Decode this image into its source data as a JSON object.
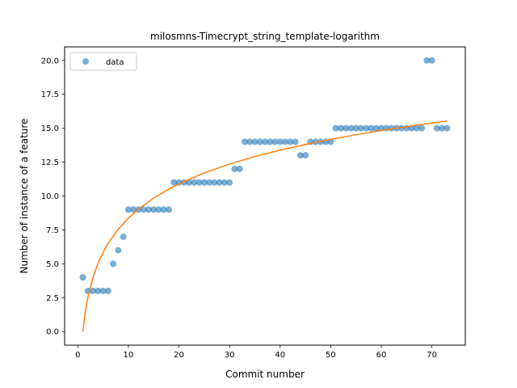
{
  "chart_data": {
    "type": "scatter",
    "title": "milosmns-Timecrypt_string_template-logarithm",
    "xlabel": "Commit number",
    "ylabel": "Number of instance of a feature",
    "xlim": [
      -2.6,
      76.6
    ],
    "ylim": [
      -1.0,
      21.0
    ],
    "xticks": [
      0,
      10,
      20,
      30,
      40,
      50,
      60,
      70
    ],
    "xtick_labels": [
      "0",
      "10",
      "20",
      "30",
      "40",
      "50",
      "60",
      "70"
    ],
    "yticks": [
      0,
      2.5,
      5,
      7.5,
      10,
      12.5,
      15,
      17.5,
      20
    ],
    "ytick_labels": [
      "0.0",
      "2.5",
      "5.0",
      "7.5",
      "10.0",
      "12.5",
      "15.0",
      "17.5",
      "20.0"
    ],
    "grid": false,
    "legend_position": "top-left",
    "series": [
      {
        "name": "data",
        "kind": "scatter",
        "color": "#1f77b4",
        "x": [
          1,
          2,
          3,
          4,
          5,
          6,
          7,
          8,
          9,
          10,
          11,
          12,
          13,
          14,
          15,
          16,
          17,
          18,
          19,
          20,
          21,
          22,
          23,
          24,
          25,
          26,
          27,
          28,
          29,
          30,
          31,
          32,
          33,
          34,
          35,
          36,
          37,
          38,
          39,
          40,
          41,
          42,
          43,
          44,
          45,
          46,
          47,
          48,
          49,
          50,
          51,
          52,
          53,
          54,
          55,
          56,
          57,
          58,
          59,
          60,
          61,
          62,
          63,
          64,
          65,
          66,
          67,
          68,
          69,
          70,
          71,
          72,
          73
        ],
        "y": [
          4,
          3,
          3,
          3,
          3,
          3,
          5,
          6,
          7,
          9,
          9,
          9,
          9,
          9,
          9,
          9,
          9,
          9,
          11,
          11,
          11,
          11,
          11,
          11,
          11,
          11,
          11,
          11,
          11,
          11,
          12,
          12,
          14,
          14,
          14,
          14,
          14,
          14,
          14,
          14,
          14,
          14,
          14,
          13,
          13,
          14,
          14,
          14,
          14,
          14,
          15,
          15,
          15,
          15,
          15,
          15,
          15,
          15,
          15,
          15,
          15,
          15,
          15,
          15,
          15,
          15,
          15,
          15,
          20,
          20,
          15,
          15,
          15
        ]
      },
      {
        "kind": "line",
        "color": "#ff7f0e",
        "x": [
          1,
          1.5,
          2,
          3,
          4,
          5,
          6,
          8,
          10,
          12,
          15,
          18,
          20,
          25,
          30,
          35,
          40,
          45,
          50,
          55,
          60,
          65,
          70,
          73
        ],
        "y": [
          0.0,
          1.47,
          2.52,
          3.99,
          5.04,
          5.85,
          6.51,
          7.56,
          8.37,
          9.03,
          9.85,
          10.51,
          10.89,
          11.7,
          12.36,
          12.91,
          13.39,
          13.8,
          14.18,
          14.52,
          14.83,
          15.11,
          15.38,
          15.53
        ]
      }
    ]
  }
}
